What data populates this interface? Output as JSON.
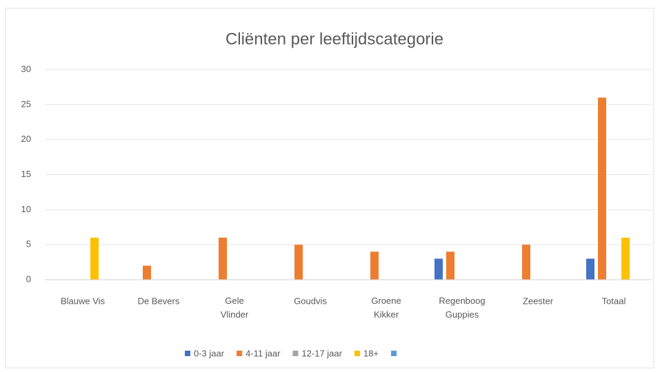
{
  "chart_data": {
    "type": "bar",
    "title": "Cliënten per leeftijdscategorie",
    "categories": [
      "Blauwe Vis",
      "De Bevers",
      "Gele Vlinder",
      "Goudvis",
      "Groene Kikker",
      "Regenboog Guppies",
      "Zeester",
      "Totaal"
    ],
    "series": [
      {
        "name": "0-3 jaar",
        "color": "#4472c4",
        "values": [
          null,
          null,
          null,
          null,
          null,
          3,
          null,
          3
        ]
      },
      {
        "name": "4-11 jaar",
        "color": "#ed7d31",
        "values": [
          null,
          2,
          6,
          5,
          4,
          4,
          5,
          26
        ]
      },
      {
        "name": "12-17 jaar",
        "color": "#a5a5a5",
        "values": [
          null,
          null,
          null,
          null,
          null,
          null,
          null,
          null
        ]
      },
      {
        "name": "18+",
        "color": "#ffc000",
        "values": [
          6,
          null,
          null,
          null,
          null,
          null,
          null,
          6
        ]
      },
      {
        "name": null,
        "color": "#5b9bd5",
        "values": [
          null,
          null,
          null,
          null,
          null,
          null,
          null,
          null
        ]
      }
    ],
    "ylim": [
      0,
      30
    ],
    "yticks": [
      0,
      5,
      10,
      15,
      20,
      25,
      30
    ],
    "grid": true,
    "legend": "bottom"
  }
}
